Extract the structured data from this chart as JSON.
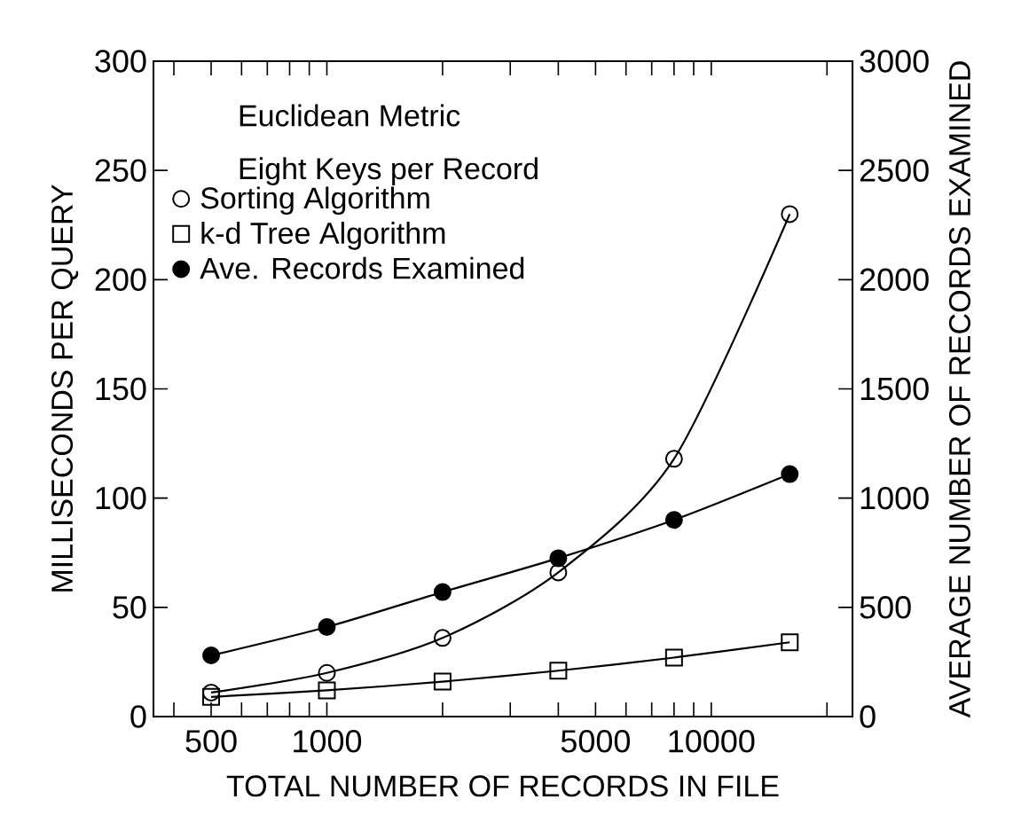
{
  "chart_data": {
    "type": "line",
    "xlabel": "TOTAL NUMBER OF RECORDS IN FILE",
    "ylabel": "MILLISECONDS PER QUERY",
    "y2label": "AVERAGE NUMBER OF RECORDS EXAMINED",
    "annotations": [
      "Euclidean Metric",
      "Eight Keys per Record"
    ],
    "x": [
      500,
      1000,
      2000,
      4000,
      8000,
      16000
    ],
    "series": [
      {
        "name": "Sorting Algorithm",
        "color": "#000000",
        "marker": "circle",
        "values": [
          11,
          20,
          36,
          66,
          118,
          230
        ]
      },
      {
        "name": "k-d Tree Algorithm",
        "color": "#000000",
        "marker": "square",
        "values": [
          9,
          12,
          16,
          21,
          27,
          34
        ]
      },
      {
        "name": "Ave. Records Examined",
        "color": "#000000",
        "marker": "circle",
        "axis": "y2",
        "values": [
          280,
          410,
          570,
          725,
          900,
          1110
        ]
      }
    ],
    "log": "x",
    "xlim": [
      354,
      23300
    ],
    "xticks": [
      {
        "value": 400,
        "label": null
      },
      500,
      {
        "value": 600,
        "label": null
      },
      {
        "value": 700,
        "label": null
      },
      {
        "value": 800,
        "label": null
      },
      {
        "value": 900,
        "label": null
      },
      1000,
      {
        "value": 2000,
        "label": null
      },
      {
        "value": 3000,
        "label": null
      },
      {
        "value": 4000,
        "label": null
      },
      5000,
      {
        "value": 6000,
        "label": null
      },
      {
        "value": 7000,
        "label": null
      },
      {
        "value": 8000,
        "label": null
      },
      {
        "value": 9000,
        "label": null
      },
      10000,
      {
        "value": 20000,
        "label": null
      }
    ],
    "ylim": [
      0,
      300
    ],
    "yticks": [
      0,
      50,
      100,
      150,
      200,
      250,
      300
    ],
    "y2lim": [
      0,
      3000
    ],
    "y2ticks": [
      0,
      500,
      1000,
      1500,
      2000,
      2500,
      3000
    ],
    "legend": "top left",
    "line_style": "solid"
  }
}
